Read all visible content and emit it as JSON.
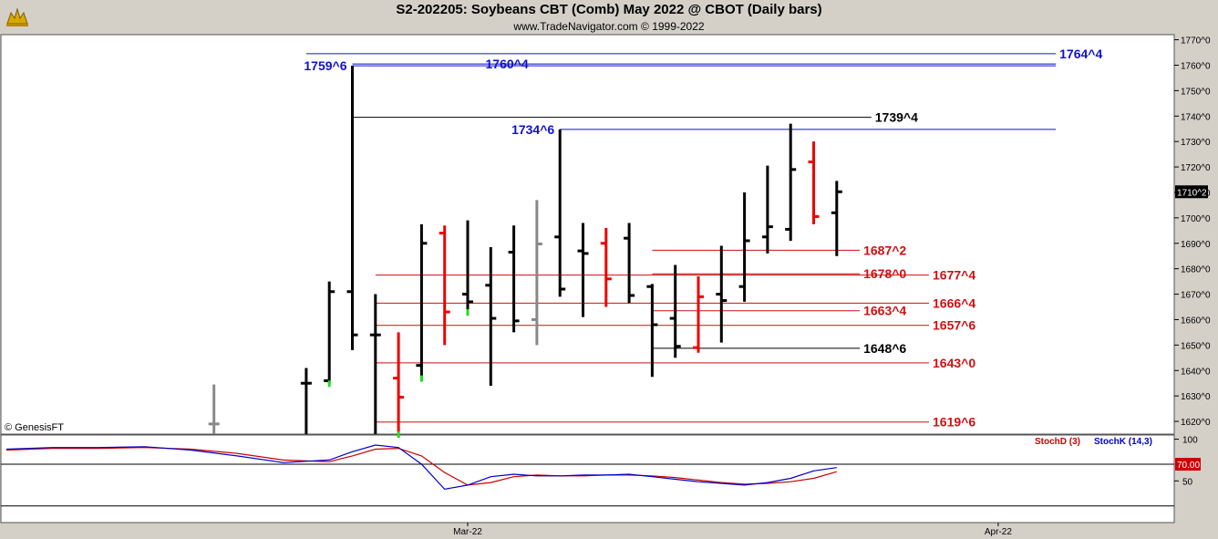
{
  "header": {
    "title": "S2-202205:  Soybeans CBT (Comb) May 2022 @ CBOT  (Daily bars)",
    "subtitle": "www.TradeNavigator.com © 1999-2022",
    "copyright": "© GenesisFT"
  },
  "colors": {
    "blue": "#1111cc",
    "red": "#cc1111",
    "black": "#000000",
    "up_bar": "#000000",
    "down_bar": "#ee0000",
    "gray_bar": "#888888",
    "green_tick": "#22dd22",
    "stoch_d": "#cc0000",
    "stoch_k": "#0000cc"
  },
  "chart_data": {
    "type": "ohlc",
    "price_axis": {
      "min": 1615.0,
      "max": 1772.0,
      "tick_labels": [
        "1770^0",
        "1760^0",
        "1750^0",
        "1740^0",
        "1730^0",
        "1720^0",
        "1710^0",
        "1700^0",
        "1690^0",
        "1680^0",
        "1670^0",
        "1660^0",
        "1650^0",
        "1640^0",
        "1630^0",
        "1620^0"
      ],
      "tick_values": [
        1770,
        1760,
        1750,
        1740,
        1730,
        1720,
        1710,
        1700,
        1690,
        1680,
        1670,
        1660,
        1650,
        1640,
        1630,
        1620
      ],
      "last_price_label": "1710^2",
      "last_price": 1710.25
    },
    "x_axis": {
      "labels": [
        "Mar-22",
        "Apr-22"
      ],
      "label_index": [
        5,
        28
      ]
    },
    "bars": [
      {
        "i": -6,
        "o": 1619,
        "h": 1634.5,
        "l": 1615,
        "c": 1619,
        "color": "gray"
      },
      {
        "i": -2,
        "o": 1635,
        "h": 1641,
        "l": 1615,
        "c": 1635,
        "color": "black"
      },
      {
        "i": -1,
        "o": 1636,
        "h": 1675,
        "l": 1635,
        "c": 1671,
        "color": "black",
        "low_tick": "green"
      },
      {
        "i": 0,
        "o": 1671,
        "h": 1759.75,
        "l": 1648,
        "c": 1654,
        "color": "black"
      },
      {
        "i": 1,
        "o": 1654,
        "h": 1670,
        "l": 1615,
        "c": 1654,
        "color": "black"
      },
      {
        "i": 2,
        "o": 1637,
        "h": 1655,
        "l": 1615,
        "c": 1629.5,
        "color": "red",
        "low_tick": "green"
      },
      {
        "i": 3,
        "o": 1642,
        "h": 1697.5,
        "l": 1637,
        "c": 1690,
        "color": "black",
        "low_tick": "green"
      },
      {
        "i": 4,
        "o": 1694,
        "h": 1697,
        "l": 1650,
        "c": 1663,
        "color": "red"
      },
      {
        "i": 5,
        "o": 1670,
        "h": 1699,
        "l": 1663,
        "c": 1667,
        "color": "black",
        "low_tick": "green"
      },
      {
        "i": 6,
        "o": 1673.5,
        "h": 1688.5,
        "l": 1634,
        "c": 1660.5,
        "color": "black"
      },
      {
        "i": 7,
        "o": 1686.5,
        "h": 1697,
        "l": 1655,
        "c": 1659.5,
        "color": "black"
      },
      {
        "i": 8,
        "o": 1660,
        "h": 1707,
        "l": 1650,
        "c": 1689.75,
        "color": "gray"
      },
      {
        "i": 9,
        "o": 1692.5,
        "h": 1734.75,
        "l": 1669,
        "c": 1672,
        "color": "black"
      },
      {
        "i": 10,
        "o": 1687,
        "h": 1698,
        "l": 1661,
        "c": 1686,
        "color": "black"
      },
      {
        "i": 11,
        "o": 1690,
        "h": 1696,
        "l": 1665,
        "c": 1676,
        "color": "red"
      },
      {
        "i": 12,
        "o": 1692,
        "h": 1698,
        "l": 1666.5,
        "c": 1669.5,
        "color": "black"
      },
      {
        "i": 13,
        "o": 1673,
        "h": 1674,
        "l": 1637.5,
        "c": 1658,
        "color": "black"
      },
      {
        "i": 14,
        "o": 1660.5,
        "h": 1681.5,
        "l": 1645,
        "c": 1649.5,
        "color": "black"
      },
      {
        "i": 15,
        "o": 1649,
        "h": 1677,
        "l": 1647,
        "c": 1669,
        "color": "red"
      },
      {
        "i": 16,
        "o": 1670,
        "h": 1689,
        "l": 1651,
        "c": 1667.5,
        "color": "black"
      },
      {
        "i": 17,
        "o": 1673,
        "h": 1710,
        "l": 1667,
        "c": 1691,
        "color": "black"
      },
      {
        "i": 18,
        "o": 1692.5,
        "h": 1720.5,
        "l": 1686,
        "c": 1696.5,
        "color": "black"
      },
      {
        "i": 19,
        "o": 1695.5,
        "h": 1737,
        "l": 1691,
        "c": 1719,
        "color": "black"
      },
      {
        "i": 20,
        "o": 1722,
        "h": 1730,
        "l": 1697.5,
        "c": 1700.5,
        "color": "red"
      },
      {
        "i": 21,
        "o": 1702,
        "h": 1714.5,
        "l": 1685,
        "c": 1710.25,
        "color": "black"
      }
    ],
    "levels": [
      {
        "label": "1764^4",
        "value": 1764.5,
        "color": "blue",
        "from": -2,
        "to": 30.5,
        "label_pos": "right"
      },
      {
        "label": "1760^4",
        "value": 1760.5,
        "color": "blue",
        "from": 0,
        "to": 30.5,
        "label_pos": "mid"
      },
      {
        "label": "1759^6",
        "value": 1759.75,
        "color": "blue",
        "from": 0,
        "to": 30.5,
        "label_pos": "left"
      },
      {
        "label": "1739^4",
        "value": 1739.5,
        "color": "black",
        "from": 0,
        "to": 22.5,
        "label_pos": "right"
      },
      {
        "label": "1734^6",
        "value": 1734.75,
        "color": "blue",
        "from": 9,
        "to": 30.5,
        "label_pos": "left"
      },
      {
        "label": "1687^2",
        "value": 1687.25,
        "color": "red",
        "from": 13,
        "to": 22,
        "label_pos": "right"
      },
      {
        "label": "1678^0",
        "value": 1678.0,
        "color": "red",
        "from": 13,
        "to": 22,
        "label_pos": "right"
      },
      {
        "label": "1677^4",
        "value": 1677.5,
        "color": "red",
        "from": 1,
        "to": 25,
        "label_pos": "right"
      },
      {
        "label": "1666^4",
        "value": 1666.5,
        "color": "red",
        "from": 1,
        "to": 25,
        "label_pos": "right"
      },
      {
        "label": "1663^4",
        "value": 1663.5,
        "color": "red",
        "from": 13,
        "to": 22,
        "label_pos": "right"
      },
      {
        "label": "1657^6",
        "value": 1657.75,
        "color": "red",
        "from": 1,
        "to": 25,
        "label_pos": "right"
      },
      {
        "label": "1648^6",
        "value": 1648.75,
        "color": "black",
        "from": 13,
        "to": 22,
        "label_pos": "right"
      },
      {
        "label": "1643^0",
        "value": 1643.0,
        "color": "red",
        "from": 1,
        "to": 25,
        "label_pos": "right"
      },
      {
        "label": "1619^6",
        "value": 1619.75,
        "color": "red",
        "from": 1,
        "to": 25,
        "label_pos": "right"
      }
    ],
    "stochastic": {
      "label_d": "StochD (3)",
      "label_k": "StochK (14,3)",
      "axis_labels": [
        "100",
        "50"
      ],
      "axis_values": [
        100,
        50
      ],
      "min": 0,
      "max": 105,
      "overbought_label": "70.00",
      "overbought": 70,
      "oversold": 20,
      "x": [
        -15,
        -13,
        -11,
        -9,
        -7,
        -5,
        -3,
        -1,
        0,
        1,
        2,
        3,
        4,
        5,
        6,
        7,
        8,
        9,
        10,
        11,
        12,
        13,
        14,
        15,
        16,
        17,
        18,
        19,
        20,
        21
      ],
      "k": [
        88,
        90,
        90,
        91,
        87,
        80,
        72,
        75,
        85,
        93,
        90,
        70,
        40,
        45,
        55,
        58,
        56,
        56,
        57,
        57,
        58,
        55,
        52,
        49,
        47,
        45,
        48,
        53,
        62,
        66
      ],
      "d": [
        87,
        89,
        89,
        90,
        88,
        83,
        75,
        73,
        80,
        88,
        89,
        80,
        60,
        45,
        48,
        55,
        57,
        56,
        56,
        57,
        57,
        56,
        54,
        51,
        48,
        46,
        47,
        49,
        53,
        61
      ]
    }
  }
}
